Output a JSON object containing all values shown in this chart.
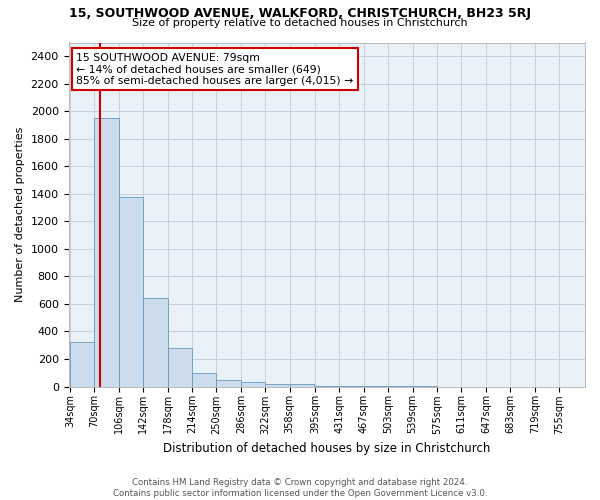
{
  "title": "15, SOUTHWOOD AVENUE, WALKFORD, CHRISTCHURCH, BH23 5RJ",
  "subtitle": "Size of property relative to detached houses in Christchurch",
  "xlabel": "Distribution of detached houses by size in Christchurch",
  "ylabel": "Number of detached properties",
  "footer_line1": "Contains HM Land Registry data © Crown copyright and database right 2024.",
  "footer_line2": "Contains public sector information licensed under the Open Government Licence v3.0.",
  "bar_edges": [
    34,
    70,
    106,
    142,
    178,
    214,
    250,
    286,
    322,
    358,
    395,
    431,
    467,
    503,
    539,
    575,
    611,
    647,
    683,
    719,
    755
  ],
  "bar_heights": [
    320,
    1950,
    1380,
    640,
    280,
    100,
    45,
    30,
    20,
    20,
    5,
    3,
    2,
    1,
    1,
    0,
    0,
    0,
    0,
    0
  ],
  "bar_color": "#ccdcec",
  "bar_edge_color": "#6699bb",
  "ylim_max": 2500,
  "yticks": [
    0,
    200,
    400,
    600,
    800,
    1000,
    1200,
    1400,
    1600,
    1800,
    2000,
    2200,
    2400
  ],
  "property_sqm": 79,
  "annotation_title": "15 SOUTHWOOD AVENUE: 79sqm",
  "annotation_line1": "← 14% of detached houses are smaller (649)",
  "annotation_line2": "85% of semi-detached houses are larger (4,015) →",
  "vline_color": "#cc0000",
  "annotation_box_edge_color": "#cc0000",
  "grid_color": "#c8d0de",
  "background_color": "#e8f0f8"
}
